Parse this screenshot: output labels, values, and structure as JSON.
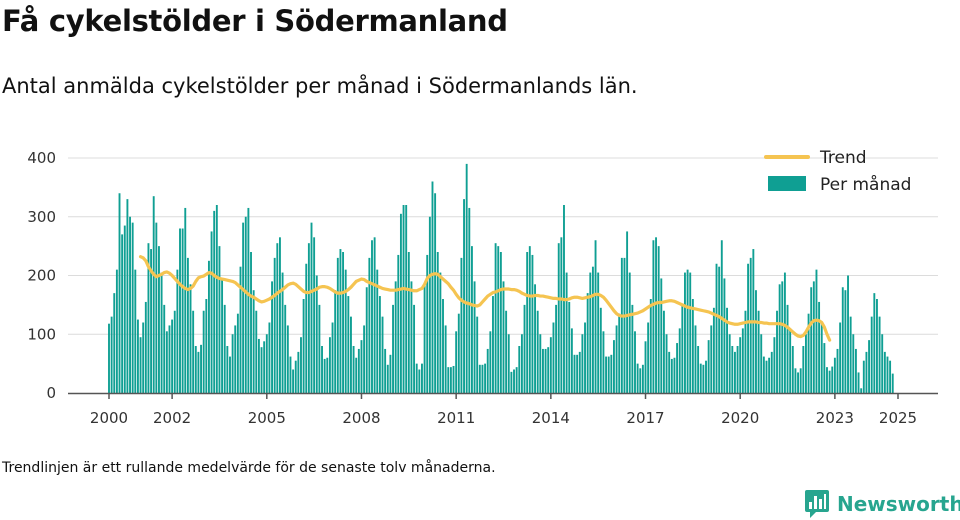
{
  "title": "Få cykelstölder i Södermanland",
  "subtitle": "Antal anmälda cykelstölder per månad i Södermanlands län.",
  "footnote": "Trendlinjen är ett rullande medelvärde för de senaste tolv månaderna.",
  "brand": {
    "name": "Newsworthy",
    "icon": "newsworthy-bars-icon",
    "color": "#27a58f"
  },
  "colors": {
    "bars": "#0f9f93",
    "trend": "#f5c451",
    "grid": "#dcdcdc",
    "axis": "#555555"
  },
  "chart_data": {
    "type": "bar",
    "x_unit": "month",
    "start": "2000-01",
    "end": "2025-02",
    "ylim": [
      0,
      400
    ],
    "yticks": [
      0,
      100,
      200,
      300,
      400
    ],
    "xticks": [
      2000,
      2002,
      2005,
      2008,
      2011,
      2014,
      2017,
      2020,
      2023,
      2025
    ],
    "grid": true,
    "legend_position": "top-right",
    "legend": [
      "Trend",
      "Per månad"
    ],
    "series": [
      {
        "name": "Per månad",
        "type": "bar",
        "start": "2000-01",
        "values": [
          118,
          130,
          170,
          210,
          340,
          270,
          285,
          330,
          300,
          290,
          210,
          125,
          95,
          120,
          155,
          255,
          245,
          335,
          290,
          250,
          205,
          150,
          105,
          115,
          125,
          140,
          210,
          280,
          280,
          315,
          230,
          185,
          140,
          80,
          70,
          82,
          140,
          160,
          225,
          275,
          310,
          320,
          250,
          195,
          150,
          80,
          62,
          100,
          115,
          135,
          215,
          290,
          300,
          315,
          240,
          175,
          140,
          92,
          78,
          88,
          100,
          120,
          190,
          230,
          255,
          265,
          205,
          150,
          115,
          62,
          40,
          55,
          70,
          95,
          160,
          220,
          255,
          290,
          265,
          200,
          150,
          80,
          58,
          60,
          95,
          120,
          175,
          230,
          245,
          240,
          210,
          165,
          130,
          80,
          60,
          75,
          90,
          115,
          180,
          230,
          260,
          265,
          210,
          165,
          130,
          75,
          48,
          65,
          150,
          190,
          235,
          305,
          320,
          320,
          240,
          190,
          150,
          50,
          40,
          50,
          185,
          235,
          300,
          360,
          340,
          240,
          205,
          160,
          115,
          44,
          44,
          46,
          105,
          135,
          230,
          330,
          390,
          315,
          250,
          190,
          130,
          48,
          48,
          50,
          75,
          105,
          165,
          255,
          250,
          240,
          190,
          140,
          100,
          36,
          40,
          44,
          80,
          100,
          150,
          240,
          250,
          235,
          185,
          140,
          100,
          75,
          75,
          78,
          95,
          120,
          150,
          255,
          265,
          320,
          205,
          155,
          110,
          65,
          65,
          70,
          100,
          120,
          170,
          205,
          215,
          260,
          205,
          145,
          105,
          62,
          62,
          65,
          90,
          115,
          135,
          230,
          230,
          275,
          205,
          150,
          105,
          50,
          42,
          48,
          88,
          120,
          160,
          260,
          265,
          250,
          195,
          140,
          100,
          70,
          58,
          60,
          85,
          110,
          150,
          205,
          210,
          205,
          160,
          115,
          80,
          50,
          48,
          55,
          90,
          115,
          145,
          220,
          215,
          260,
          195,
          145,
          100,
          80,
          70,
          80,
          95,
          110,
          140,
          220,
          230,
          245,
          175,
          140,
          100,
          62,
          55,
          60,
          70,
          95,
          140,
          185,
          190,
          205,
          150,
          110,
          80,
          42,
          35,
          42,
          80,
          100,
          135,
          180,
          190,
          210,
          155,
          120,
          85,
          44,
          38,
          45,
          60,
          75,
          120,
          180,
          175,
          200,
          130,
          100,
          75,
          35,
          8,
          55,
          70,
          90,
          130,
          170,
          160,
          130,
          100,
          70,
          62,
          55,
          33
        ]
      },
      {
        "name": "Trend",
        "type": "line",
        "start": "2001-01",
        "values": [
          232,
          230,
          225,
          215,
          208,
          202,
          198,
          200,
          202,
          205,
          206,
          204,
          200,
          195,
          190,
          185,
          181,
          178,
          176,
          178,
          182,
          190,
          196,
          198,
          199,
          202,
          205,
          204,
          200,
          197,
          195,
          194,
          193,
          192,
          191,
          190,
          188,
          184,
          180,
          176,
          172,
          168,
          165,
          163,
          160,
          157,
          155,
          156,
          158,
          160,
          163,
          166,
          170,
          173,
          176,
          180,
          184,
          186,
          187,
          185,
          181,
          177,
          173,
          171,
          171,
          173,
          175,
          177,
          180,
          181,
          181,
          180,
          178,
          175,
          172,
          170,
          170,
          171,
          173,
          176,
          180,
          185,
          190,
          192,
          194,
          193,
          190,
          188,
          186,
          184,
          182,
          180,
          178,
          177,
          176,
          175,
          175,
          175,
          176,
          177,
          178,
          177,
          176,
          175,
          174,
          174,
          176,
          178,
          185,
          195,
          200,
          202,
          203,
          202,
          198,
          194,
          190,
          186,
          180,
          175,
          168,
          162,
          158,
          155,
          153,
          152,
          150,
          149,
          148,
          150,
          155,
          160,
          165,
          168,
          171,
          172,
          174,
          176,
          177,
          177,
          177,
          176,
          176,
          175,
          173,
          170,
          168,
          166,
          165,
          165,
          166,
          166,
          165,
          165,
          164,
          163,
          162,
          161,
          161,
          160,
          160,
          159,
          159,
          160,
          162,
          163,
          163,
          162,
          161,
          162,
          163,
          164,
          166,
          168,
          168,
          166,
          163,
          158,
          152,
          146,
          140,
          135,
          132,
          131,
          131,
          132,
          133,
          134,
          135,
          136,
          138,
          140,
          143,
          146,
          149,
          151,
          153,
          154,
          154,
          155,
          156,
          157,
          157,
          156,
          154,
          152,
          150,
          148,
          146,
          145,
          144,
          143,
          142,
          141,
          140,
          139,
          138,
          136,
          134,
          132,
          130,
          127,
          124,
          121,
          119,
          118,
          117,
          117,
          118,
          119,
          120,
          121,
          121,
          121,
          121,
          120,
          120,
          119,
          119,
          118,
          118,
          118,
          118,
          118,
          117,
          115,
          112,
          108,
          104,
          100,
          97,
          96,
          98,
          104,
          112,
          119,
          123,
          124,
          123,
          120,
          112,
          100,
          90
        ]
      }
    ]
  }
}
